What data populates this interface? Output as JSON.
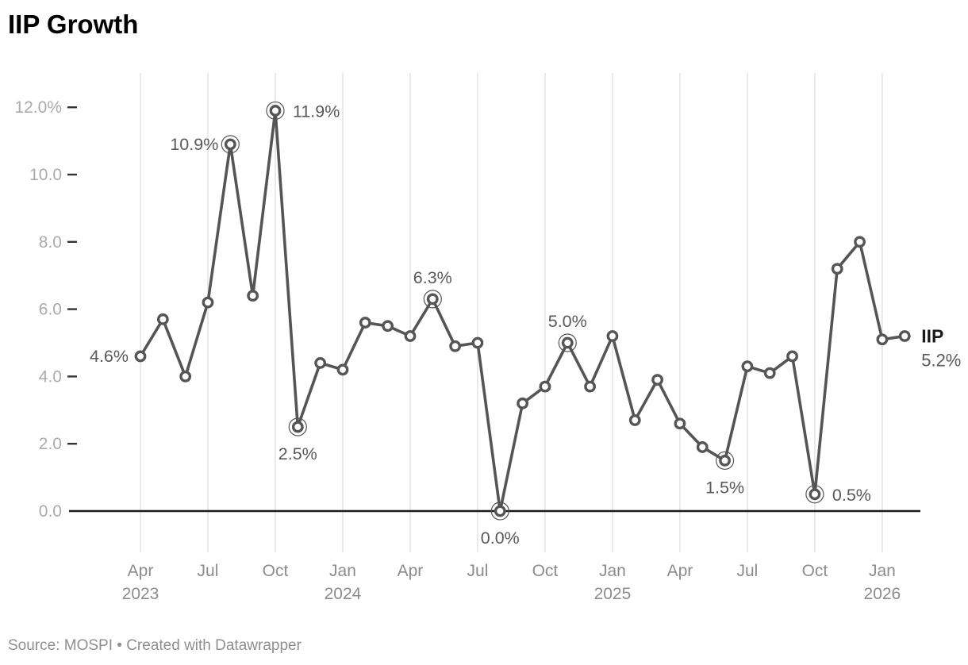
{
  "title": "IIP Growth",
  "footer": {
    "text": "Source: MOSPI • Created with Datawrapper"
  },
  "legend": {
    "label": "IIP",
    "value": "5.2%"
  },
  "colors": {
    "line": "#555555",
    "marker_fill": "#ffffff",
    "ring": "#555555",
    "data_label": "#595959",
    "y_axis_label": "#ababab",
    "x_axis_label": "#8c8c8c",
    "gridline": "#e5e5e5",
    "tick_dash": "#333333",
    "baseline": "#1a1a1a",
    "legend_label": "#1a1a1a",
    "title": "#000000",
    "footer": "#8f8f8f"
  },
  "chart_data": {
    "type": "line",
    "title": "IIP Growth",
    "series_name": "IIP",
    "unit": "%",
    "grid": "vertical-quarterly",
    "legend_position": "end-of-line",
    "ylim": [
      0,
      13
    ],
    "x": [
      "Apr 2023",
      "May 2023",
      "Jun 2023",
      "Jul 2023",
      "Aug 2023",
      "Sep 2023",
      "Oct 2023",
      "Nov 2023",
      "Dec 2023",
      "Jan 2024",
      "Feb 2024",
      "Mar 2024",
      "Apr 2024",
      "May 2024",
      "Jun 2024",
      "Jul 2024",
      "Aug 2024",
      "Sep 2024",
      "Oct 2024",
      "Nov 2024",
      "Dec 2024",
      "Jan 2025",
      "Feb 2025",
      "Mar 2025",
      "Apr 2025",
      "May 2025",
      "Jun 2025",
      "Jul 2025",
      "Aug 2025",
      "Sep 2025",
      "Oct 2025",
      "Nov 2025",
      "Dec 2025",
      "Jan 2026",
      "Feb 2026"
    ],
    "values": [
      4.6,
      5.7,
      4.0,
      6.2,
      10.9,
      6.4,
      11.9,
      2.5,
      4.4,
      4.2,
      5.6,
      5.5,
      5.2,
      6.3,
      4.9,
      5.0,
      0.0,
      3.2,
      3.7,
      5.0,
      3.7,
      5.2,
      2.7,
      3.9,
      2.6,
      1.9,
      1.5,
      4.3,
      4.1,
      4.6,
      0.5,
      7.2,
      8.0,
      5.1,
      5.2
    ],
    "y_ticks": [
      {
        "label": "12.0%",
        "value": 12
      },
      {
        "label": "10.0",
        "value": 10
      },
      {
        "label": "8.0",
        "value": 8
      },
      {
        "label": "6.0",
        "value": 6
      },
      {
        "label": "4.0",
        "value": 4
      },
      {
        "label": "2.0",
        "value": 2
      },
      {
        "label": "0.0",
        "value": 0
      }
    ],
    "x_ticks": [
      {
        "index": 0,
        "month": "Apr",
        "year": "2023"
      },
      {
        "index": 3,
        "month": "Jul"
      },
      {
        "index": 6,
        "month": "Oct"
      },
      {
        "index": 9,
        "month": "Jan",
        "year": "2024"
      },
      {
        "index": 12,
        "month": "Apr"
      },
      {
        "index": 15,
        "month": "Jul"
      },
      {
        "index": 18,
        "month": "Oct"
      },
      {
        "index": 21,
        "month": "Jan",
        "year": "2025"
      },
      {
        "index": 24,
        "month": "Apr"
      },
      {
        "index": 27,
        "month": "Jul"
      },
      {
        "index": 30,
        "month": "Oct"
      },
      {
        "index": 33,
        "month": "Jan",
        "year": "2026"
      }
    ],
    "annotations": [
      {
        "index": 0,
        "text": "4.6%",
        "position": "left",
        "ring": false
      },
      {
        "index": 4,
        "text": "10.9%",
        "position": "left",
        "ring": true
      },
      {
        "index": 6,
        "text": "11.9%",
        "position": "right",
        "ring": true
      },
      {
        "index": 7,
        "text": "2.5%",
        "position": "below",
        "ring": true
      },
      {
        "index": 13,
        "text": "6.3%",
        "position": "above",
        "ring": true
      },
      {
        "index": 16,
        "text": "0.0%",
        "position": "below",
        "ring": true
      },
      {
        "index": 19,
        "text": "5.0%",
        "position": "above",
        "ring": true
      },
      {
        "index": 26,
        "text": "1.5%",
        "position": "below",
        "ring": true
      },
      {
        "index": 30,
        "text": "0.5%",
        "position": "right",
        "ring": true
      }
    ]
  }
}
